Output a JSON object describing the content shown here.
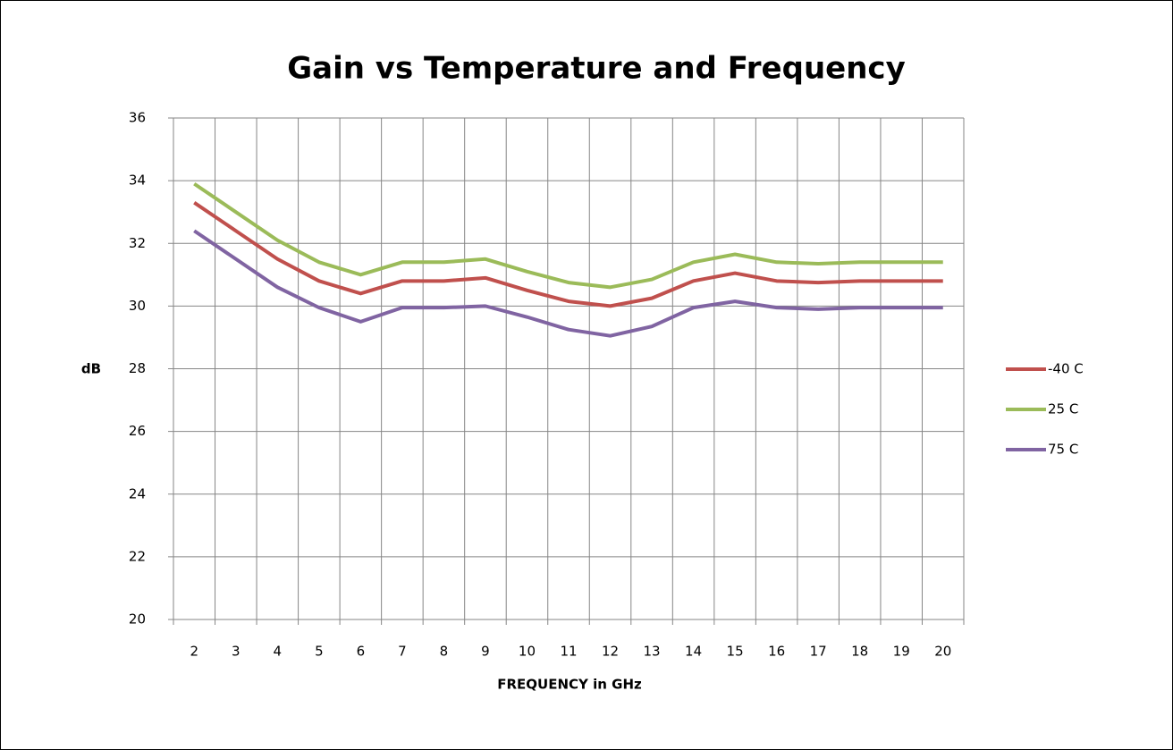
{
  "chart_data": {
    "type": "line",
    "title": "Gain vs Temperature and Frequency",
    "x_label": "FREQUENCY in GHz",
    "y_label": "dB",
    "categories": [
      "2",
      "3",
      "4",
      "5",
      "6",
      "7",
      "8",
      "9",
      "10",
      "11",
      "12",
      "13",
      "14",
      "15",
      "16",
      "17",
      "18",
      "19",
      "20"
    ],
    "series": [
      {
        "name": "-40 C",
        "color": "#c0504d",
        "values": [
          33.3,
          32.4,
          31.5,
          30.8,
          30.4,
          30.8,
          30.8,
          30.9,
          30.5,
          30.15,
          30.0,
          30.25,
          30.8,
          31.05,
          30.8,
          30.75,
          30.8,
          30.8,
          30.8
        ]
      },
      {
        "name": "25 C",
        "color": "#9bbb59",
        "values": [
          33.9,
          33.0,
          32.1,
          31.4,
          31.0,
          31.4,
          31.4,
          31.5,
          31.1,
          30.75,
          30.6,
          30.85,
          31.4,
          31.65,
          31.4,
          31.35,
          31.4,
          31.4,
          31.4
        ]
      },
      {
        "name": "75 C",
        "color": "#8064a2",
        "values": [
          32.4,
          31.5,
          30.6,
          29.95,
          29.5,
          29.95,
          29.95,
          30.0,
          29.65,
          29.25,
          29.05,
          29.35,
          29.95,
          30.15,
          29.95,
          29.9,
          29.95,
          29.95,
          29.95
        ]
      }
    ],
    "ylim": [
      20,
      36
    ],
    "yticks": [
      20,
      22,
      24,
      26,
      28,
      30,
      32,
      34,
      36
    ],
    "grid": true,
    "legend": "right"
  }
}
